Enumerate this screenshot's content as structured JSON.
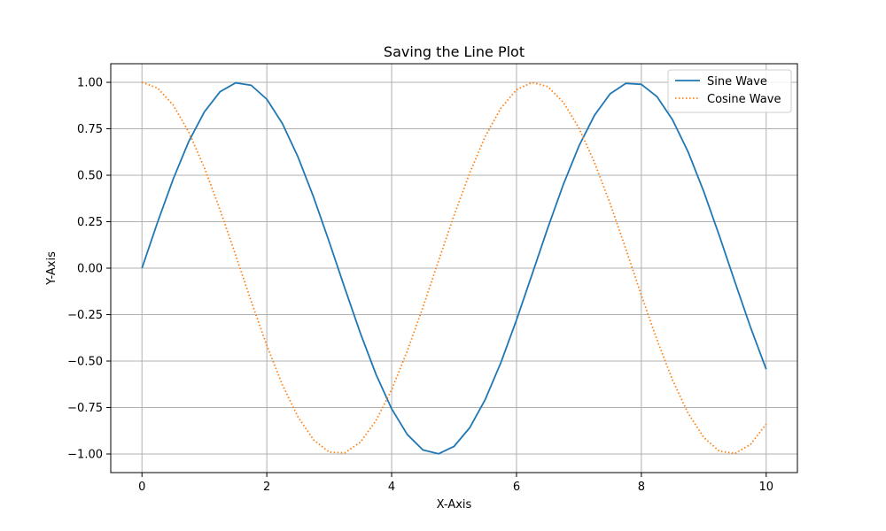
{
  "chart_data": {
    "type": "line",
    "title": "Saving the Line Plot",
    "xlabel": "X-Axis",
    "ylabel": "Y-Axis",
    "xlim": [
      -0.5,
      10.5
    ],
    "ylim": [
      -1.1,
      1.1
    ],
    "xticks": [
      0,
      2,
      4,
      6,
      8,
      10
    ],
    "xtick_labels": [
      "0",
      "2",
      "4",
      "6",
      "8",
      "10"
    ],
    "yticks": [
      -1.0,
      -0.75,
      -0.5,
      -0.25,
      0.0,
      0.25,
      0.5,
      0.75,
      1.0
    ],
    "ytick_labels": [
      "−1.00",
      "−0.75",
      "−0.50",
      "−0.25",
      "0.00",
      "0.25",
      "0.50",
      "0.75",
      "1.00"
    ],
    "grid": true,
    "legend_position": "upper right",
    "x": [
      0,
      0.25,
      0.5,
      0.75,
      1,
      1.25,
      1.5,
      1.75,
      2,
      2.25,
      2.5,
      2.75,
      3,
      3.25,
      3.5,
      3.75,
      4,
      4.25,
      4.5,
      4.75,
      5,
      5.25,
      5.5,
      5.75,
      6,
      6.25,
      6.5,
      6.75,
      7,
      7.25,
      7.5,
      7.75,
      8,
      8.25,
      8.5,
      8.75,
      9,
      9.25,
      9.5,
      9.75,
      10
    ],
    "series": [
      {
        "name": "Sine Wave",
        "color": "#1f77b4",
        "style": "solid",
        "values": [
          0.0,
          0.247,
          0.479,
          0.682,
          0.841,
          0.949,
          0.997,
          0.984,
          0.909,
          0.778,
          0.598,
          0.382,
          0.141,
          -0.108,
          -0.351,
          -0.572,
          -0.757,
          -0.895,
          -0.978,
          -0.999,
          -0.959,
          -0.859,
          -0.706,
          -0.508,
          -0.279,
          -0.033,
          0.215,
          0.45,
          0.657,
          0.823,
          0.938,
          0.994,
          0.989,
          0.923,
          0.798,
          0.625,
          0.412,
          0.174,
          -0.075,
          -0.319,
          -0.544
        ]
      },
      {
        "name": "Cosine Wave",
        "color": "#ff7f0e",
        "style": "dotted",
        "values": [
          1.0,
          0.969,
          0.878,
          0.732,
          0.54,
          0.315,
          0.071,
          -0.178,
          -0.416,
          -0.628,
          -0.801,
          -0.924,
          -0.99,
          -0.994,
          -0.936,
          -0.82,
          -0.654,
          -0.446,
          -0.211,
          0.038,
          0.284,
          0.512,
          0.709,
          0.861,
          0.96,
          0.999,
          0.977,
          0.893,
          0.754,
          0.568,
          0.347,
          0.105,
          -0.146,
          -0.385,
          -0.602,
          -0.781,
          -0.911,
          -0.985,
          -0.997,
          -0.948,
          -0.839
        ]
      }
    ]
  }
}
